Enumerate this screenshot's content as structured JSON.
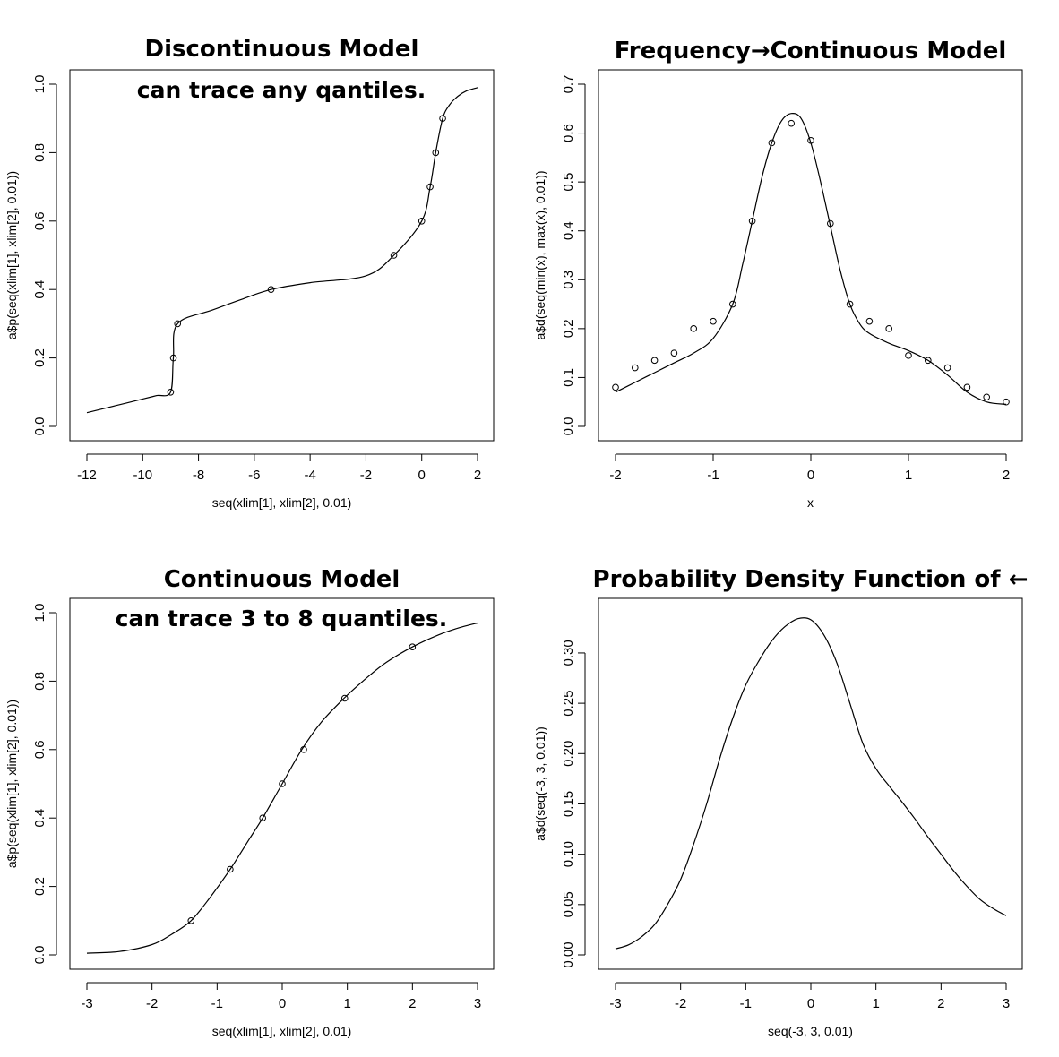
{
  "chart_data": [
    {
      "type": "line",
      "title": "Discontinuous Model",
      "annotation": "can trace any qantiles.",
      "xlabel": "seq(xlim[1], xlim[2], 0.01)",
      "ylabel": "a$p(seq(xlim[1], xlim[2], 0.01))",
      "xlim": [
        -12,
        2
      ],
      "ylim": [
        0,
        1
      ],
      "xticks": [
        -12,
        -10,
        -8,
        -6,
        -4,
        -2,
        0,
        2
      ],
      "yticks": [
        0.0,
        0.2,
        0.4,
        0.6,
        0.8,
        1.0
      ],
      "ytick_labels": [
        "0.0",
        "0.2",
        "0.4",
        "0.6",
        "0.8",
        "1.0"
      ],
      "series": [
        {
          "kind": "line",
          "x": [
            -12,
            -11,
            -10,
            -9.5,
            -9.0,
            -8.9,
            -8.75,
            -7.5,
            -6.5,
            -5.4,
            -4.0,
            -2.0,
            -1.0,
            0.0,
            0.3,
            0.5,
            0.75,
            1.0,
            1.3,
            1.6,
            2.0
          ],
          "y": [
            0.04,
            0.06,
            0.08,
            0.09,
            0.1,
            0.2,
            0.3,
            0.34,
            0.37,
            0.4,
            0.42,
            0.44,
            0.5,
            0.6,
            0.7,
            0.8,
            0.9,
            0.94,
            0.965,
            0.98,
            0.99
          ]
        },
        {
          "kind": "points",
          "x": [
            -9.0,
            -8.9,
            -8.75,
            -5.4,
            -1.0,
            0.0,
            0.3,
            0.5,
            0.75
          ],
          "y": [
            0.1,
            0.2,
            0.3,
            0.4,
            0.5,
            0.6,
            0.7,
            0.8,
            0.9
          ]
        }
      ]
    },
    {
      "type": "line",
      "title": "Frequency→Continuous Model",
      "annotation": "",
      "xlabel": "x",
      "ylabel": "a$d(seq(min(x), max(x), 0.01))",
      "xlim": [
        -2,
        2
      ],
      "ylim": [
        0,
        0.7
      ],
      "xticks": [
        -2,
        -1,
        0,
        1,
        2
      ],
      "yticks": [
        0.0,
        0.1,
        0.2,
        0.3,
        0.4,
        0.5,
        0.6,
        0.7
      ],
      "ytick_labels": [
        "0.0",
        "0.1",
        "0.2",
        "0.3",
        "0.4",
        "0.5",
        "0.6",
        "0.7"
      ],
      "series": [
        {
          "kind": "line",
          "x": [
            -2.0,
            -1.8,
            -1.6,
            -1.4,
            -1.2,
            -1.0,
            -0.8,
            -0.7,
            -0.6,
            -0.5,
            -0.4,
            -0.3,
            -0.2,
            -0.1,
            0.0,
            0.1,
            0.2,
            0.3,
            0.4,
            0.5,
            0.6,
            0.8,
            1.0,
            1.2,
            1.4,
            1.6,
            1.8,
            2.0
          ],
          "y": [
            0.07,
            0.09,
            0.11,
            0.13,
            0.15,
            0.18,
            0.25,
            0.33,
            0.42,
            0.51,
            0.58,
            0.625,
            0.64,
            0.63,
            0.58,
            0.5,
            0.41,
            0.32,
            0.25,
            0.21,
            0.19,
            0.17,
            0.155,
            0.135,
            0.105,
            0.07,
            0.05,
            0.045
          ]
        },
        {
          "kind": "points",
          "x": [
            -2.0,
            -1.8,
            -1.6,
            -1.4,
            -1.2,
            -1.0,
            -0.8,
            -0.6,
            -0.4,
            -0.2,
            0.0,
            0.2,
            0.4,
            0.6,
            0.8,
            1.0,
            1.2,
            1.4,
            1.6,
            1.8,
            2.0
          ],
          "y": [
            0.08,
            0.12,
            0.135,
            0.15,
            0.2,
            0.215,
            0.25,
            0.42,
            0.58,
            0.62,
            0.585,
            0.415,
            0.25,
            0.215,
            0.2,
            0.145,
            0.135,
            0.12,
            0.08,
            0.06,
            0.05
          ]
        }
      ]
    },
    {
      "type": "line",
      "title": "Continuous Model",
      "annotation": "can trace 3 to 8 quantiles.",
      "xlabel": "seq(xlim[1], xlim[2], 0.01)",
      "ylabel": "a$p(seq(xlim[1], xlim[2], 0.01))",
      "xlim": [
        -3,
        3
      ],
      "ylim": [
        0,
        1
      ],
      "xticks": [
        -3,
        -2,
        -1,
        0,
        1,
        2,
        3
      ],
      "yticks": [
        0.0,
        0.2,
        0.4,
        0.6,
        0.8,
        1.0
      ],
      "ytick_labels": [
        "0.0",
        "0.2",
        "0.4",
        "0.6",
        "0.8",
        "1.0"
      ],
      "series": [
        {
          "kind": "line",
          "x": [
            -3.0,
            -2.5,
            -2.0,
            -1.7,
            -1.4,
            -1.1,
            -0.8,
            -0.5,
            -0.3,
            0.0,
            0.3,
            0.6,
            0.95,
            1.3,
            1.6,
            2.0,
            2.4,
            2.7,
            3.0
          ],
          "y": [
            0.005,
            0.01,
            0.03,
            0.06,
            0.1,
            0.17,
            0.25,
            0.34,
            0.4,
            0.5,
            0.6,
            0.68,
            0.75,
            0.81,
            0.855,
            0.9,
            0.935,
            0.955,
            0.97
          ]
        },
        {
          "kind": "points",
          "x": [
            -1.4,
            -0.8,
            -0.3,
            0.0,
            0.33,
            0.96,
            2.0
          ],
          "y": [
            0.1,
            0.25,
            0.4,
            0.5,
            0.6,
            0.75,
            0.9
          ]
        }
      ]
    },
    {
      "type": "line",
      "title": "Probability Density Function of ←",
      "annotation": "",
      "xlabel": "seq(-3, 3, 0.01)",
      "ylabel": "a$d(seq(-3, 3, 0.01))",
      "xlim": [
        -3,
        3
      ],
      "ylim": [
        0,
        0.34
      ],
      "xticks": [
        -3,
        -2,
        -1,
        0,
        1,
        2,
        3
      ],
      "yticks": [
        0.0,
        0.05,
        0.1,
        0.15,
        0.2,
        0.25,
        0.3
      ],
      "ytick_labels": [
        "0.00",
        "0.05",
        "0.10",
        "0.15",
        "0.20",
        "0.25",
        "0.30"
      ],
      "series": [
        {
          "kind": "line",
          "x": [
            -3.0,
            -2.8,
            -2.6,
            -2.4,
            -2.2,
            -2.0,
            -1.8,
            -1.6,
            -1.4,
            -1.2,
            -1.0,
            -0.8,
            -0.6,
            -0.4,
            -0.2,
            0.0,
            0.2,
            0.4,
            0.6,
            0.8,
            1.0,
            1.2,
            1.4,
            1.6,
            1.8,
            2.0,
            2.2,
            2.4,
            2.6,
            2.8,
            3.0
          ],
          "y": [
            0.006,
            0.01,
            0.018,
            0.03,
            0.05,
            0.075,
            0.11,
            0.15,
            0.195,
            0.235,
            0.268,
            0.292,
            0.312,
            0.326,
            0.334,
            0.333,
            0.318,
            0.29,
            0.25,
            0.21,
            0.185,
            0.168,
            0.152,
            0.135,
            0.117,
            0.1,
            0.083,
            0.068,
            0.055,
            0.046,
            0.039
          ]
        }
      ]
    }
  ]
}
